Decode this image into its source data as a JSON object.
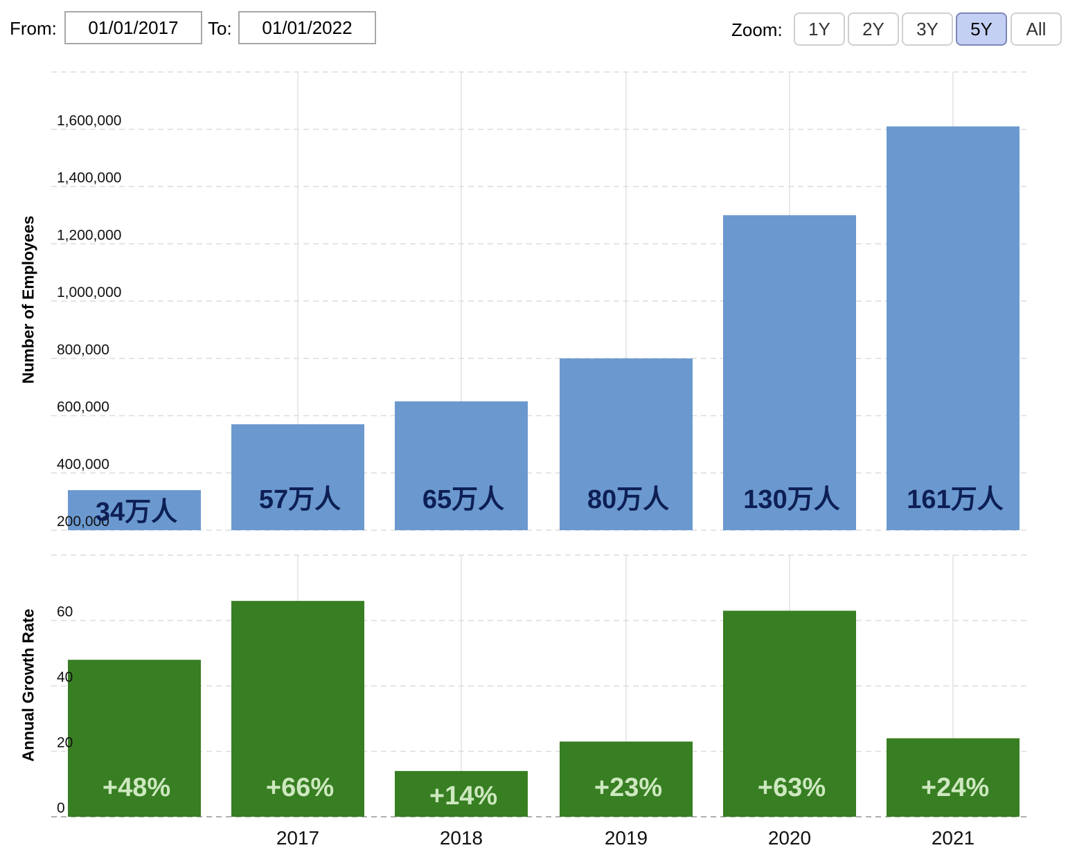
{
  "controls": {
    "from_label": "From:",
    "from_value": "01/01/2017",
    "to_label": "To:",
    "to_value": "01/01/2022",
    "zoom_label": "Zoom:",
    "zoom_options": [
      "1Y",
      "2Y",
      "3Y",
      "5Y",
      "All"
    ],
    "zoom_selected": "5Y"
  },
  "colors": {
    "employees_bar": "#6b99cf",
    "employees_label": "#0d1f55",
    "growth_bar": "#387e23",
    "growth_label": "#cde8bf",
    "zoom_active": "#c4cff4"
  },
  "chart_data": [
    {
      "type": "bar",
      "ylabel": "Number of Employees",
      "categories": [
        "",
        "2017",
        "2018",
        "2019",
        "2020",
        "2021"
      ],
      "values": [
        340000,
        570000,
        650000,
        800000,
        1300000,
        1610000
      ],
      "data_labels": [
        "34万人",
        "57万人",
        "65万人",
        "80万人",
        "130万人",
        "161万人"
      ],
      "yticks": [
        200000,
        400000,
        600000,
        800000,
        1000000,
        1200000,
        1400000,
        1600000
      ],
      "ytick_labels": [
        "200,000",
        "400,000",
        "600,000",
        "800,000",
        "1,000,000",
        "1,200,000",
        "1,400,000",
        "1,600,000"
      ],
      "ylim": [
        200000,
        1800000
      ],
      "grid": true
    },
    {
      "type": "bar",
      "ylabel": "Annual Growth Rate",
      "categories": [
        "",
        "2017",
        "2018",
        "2019",
        "2020",
        "2021"
      ],
      "values": [
        48,
        66,
        14,
        23,
        63,
        24
      ],
      "data_labels": [
        "+48%",
        "+66%",
        "+14%",
        "+23%",
        "+63%",
        "+24%"
      ],
      "yticks": [
        0,
        20,
        40,
        60
      ],
      "ytick_labels": [
        "0",
        "20",
        "40",
        "60"
      ],
      "ylim": [
        0,
        80
      ],
      "xlabel": "",
      "grid": true
    }
  ]
}
